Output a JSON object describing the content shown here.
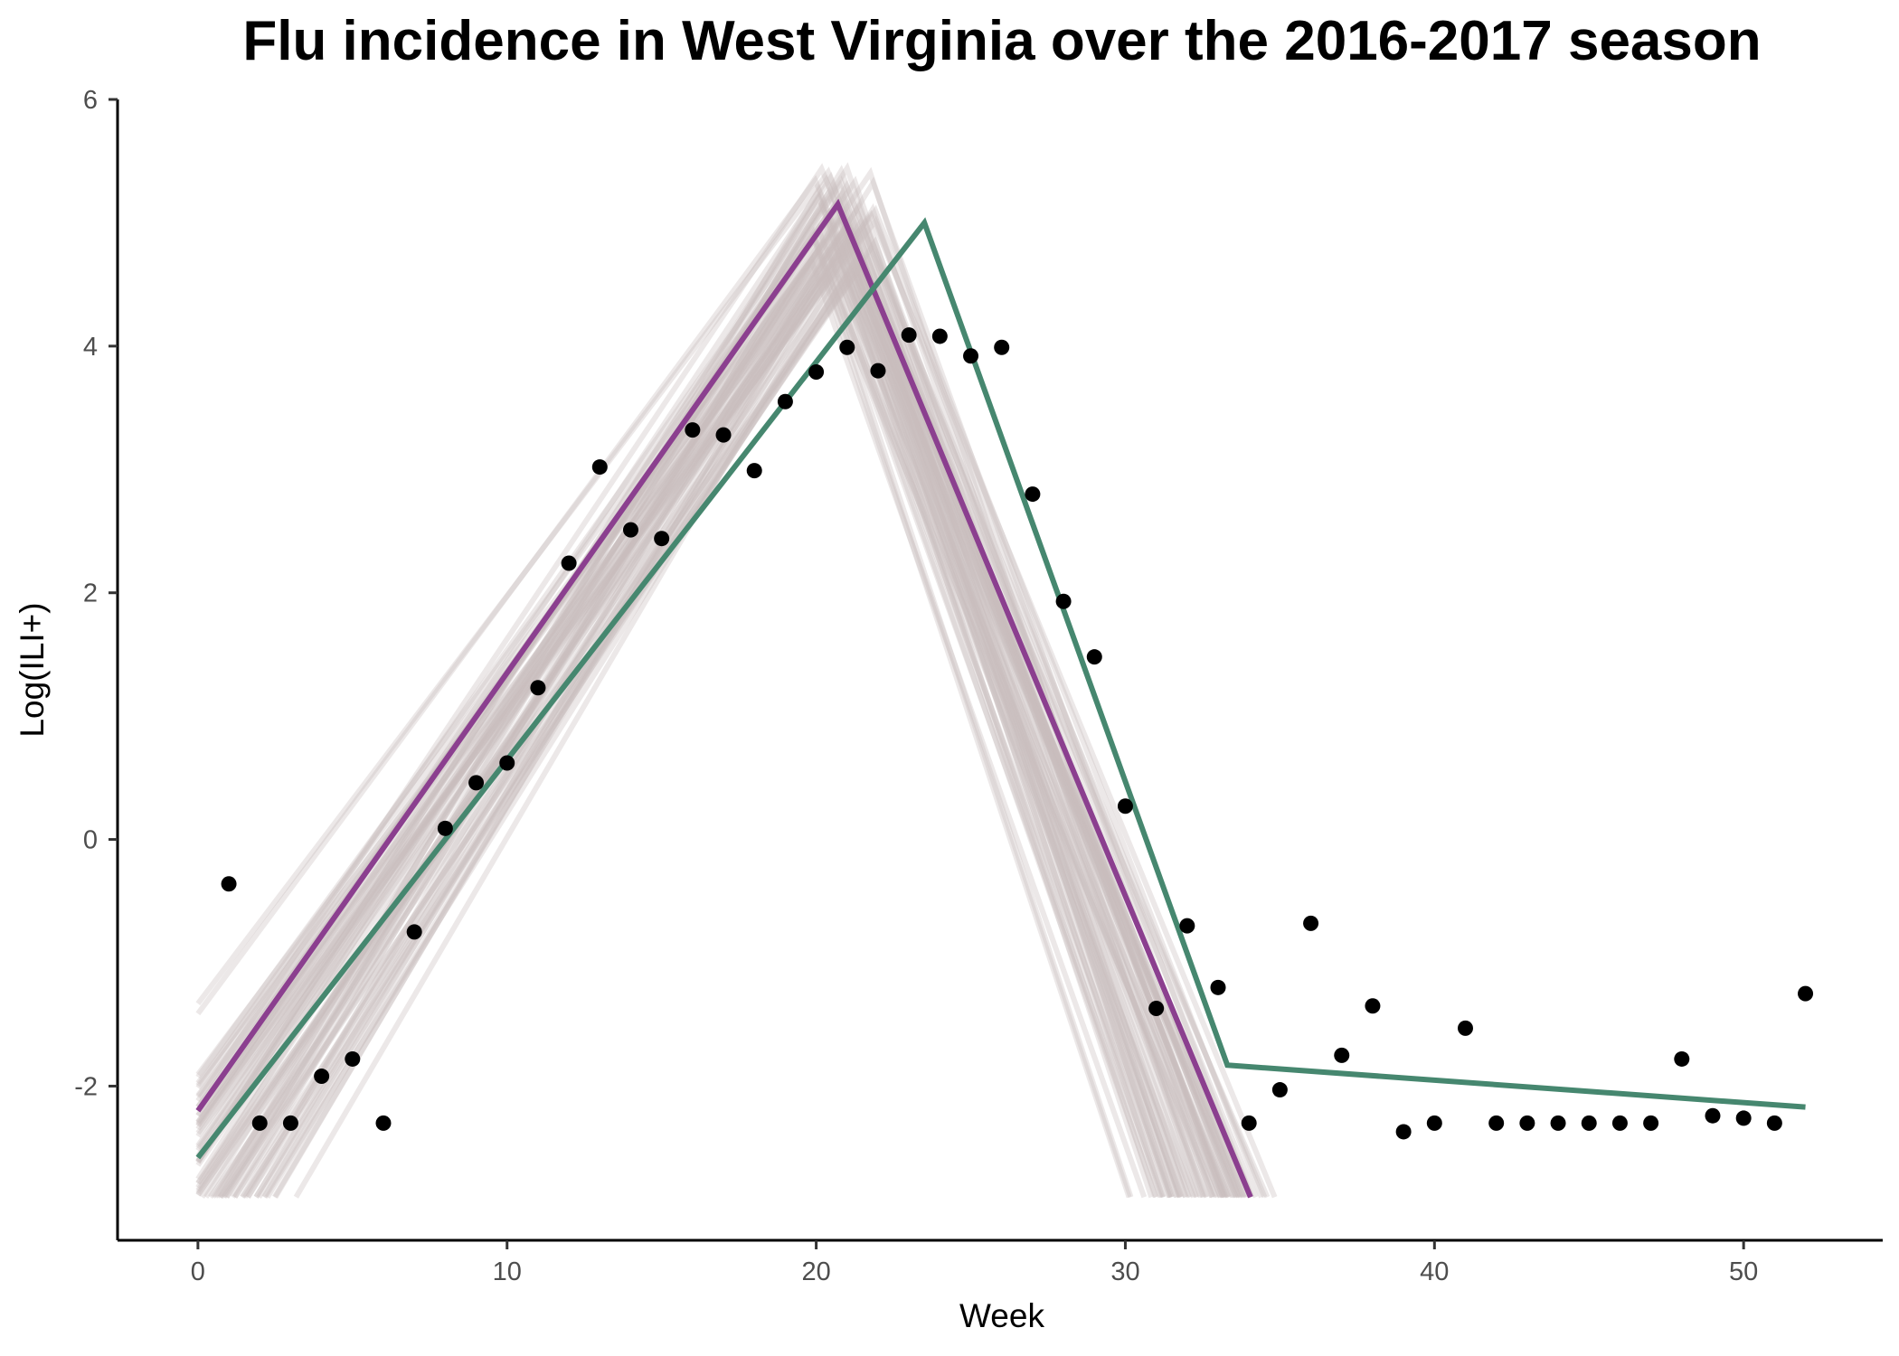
{
  "chart_data": {
    "type": "line",
    "title": "Flu incidence in West Virginia over the 2016-2017 season",
    "xlabel": "Week",
    "ylabel": "Log(ILI+)",
    "xlim": [
      -2.6,
      54.5
    ],
    "ylim": [
      -3.25,
      6
    ],
    "x_ticks": [
      0,
      10,
      20,
      30,
      40,
      50
    ],
    "y_ticks": [
      -2,
      0,
      2,
      4,
      6
    ],
    "y_tick_labels": [
      "-2",
      "0",
      "2",
      "4",
      "6"
    ],
    "grid": false,
    "legend": "none",
    "colors": {
      "purple_fit": "#8b3f8f",
      "green_fit": "#46876f",
      "ensemble": "#c8bcbc",
      "points": "#000000"
    },
    "observed": {
      "x": [
        1,
        2,
        3,
        4,
        5,
        6,
        7,
        8,
        9,
        10,
        11,
        12,
        13,
        14,
        15,
        16,
        17,
        18,
        19,
        20,
        21,
        22,
        23,
        24,
        25,
        26,
        27,
        28,
        29,
        30,
        31,
        32,
        33,
        34,
        35,
        36,
        37,
        38,
        39,
        40,
        41,
        42,
        43,
        44,
        45,
        46,
        47,
        48,
        49,
        50,
        51,
        52
      ],
      "y": [
        -0.36,
        -2.3,
        -2.3,
        -1.92,
        -1.78,
        -2.3,
        -0.75,
        0.09,
        0.46,
        0.62,
        1.23,
        2.24,
        3.02,
        2.51,
        2.44,
        3.32,
        3.28,
        2.99,
        3.55,
        3.79,
        3.99,
        3.8,
        4.09,
        4.08,
        3.92,
        3.99,
        2.8,
        1.93,
        1.48,
        0.27,
        -1.37,
        -0.7,
        -1.2,
        -2.3,
        -2.03,
        -0.68,
        -1.75,
        -1.35,
        -2.37,
        -2.3,
        -1.53,
        -2.3,
        -2.3,
        -2.3,
        -2.3,
        -2.3,
        -2.3,
        -1.78,
        -2.24,
        -2.26,
        -2.3,
        -1.25
      ]
    },
    "series": [
      {
        "x": [
          0,
          20.7,
          34.05
        ],
        "y": [
          -2.2,
          5.15,
          -2.9
        ]
      },
      {
        "x": [
          0,
          23.5,
          33.3,
          52
        ],
        "y": [
          -2.58,
          5.0,
          -1.83,
          -2.17
        ]
      }
    ],
    "ensemble": {
      "count": 70,
      "description_peak_x_range": [
        19.8,
        22.0
      ],
      "peak_y_range": [
        4.55,
        5.45
      ],
      "floor_y": -2.9
    }
  }
}
